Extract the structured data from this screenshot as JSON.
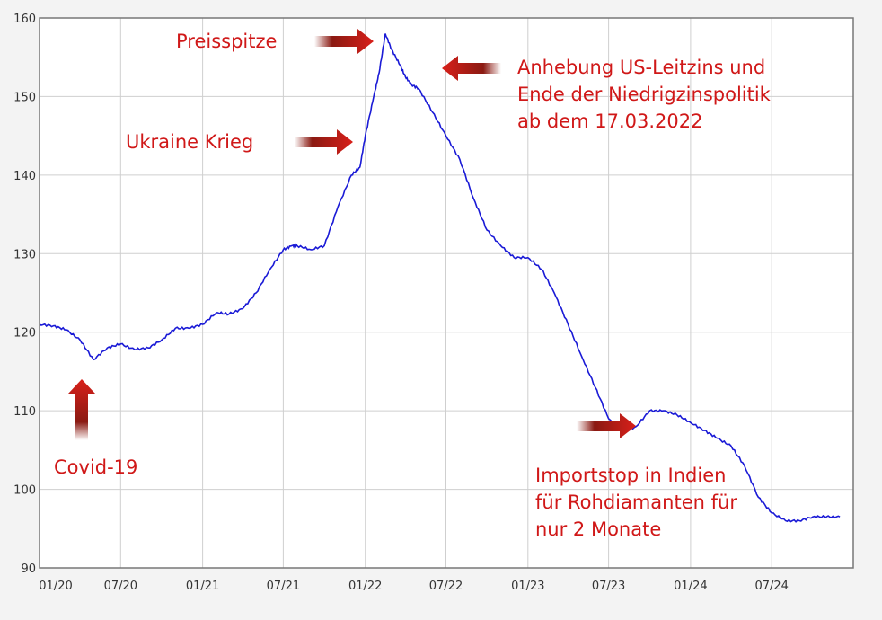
{
  "chart_data": {
    "type": "line",
    "title": "",
    "xlabel": "",
    "ylabel": "",
    "ylim": [
      90,
      160
    ],
    "y_ticks": [
      "90",
      "100",
      "110",
      "120",
      "130",
      "140",
      "150",
      "160"
    ],
    "x_ticks": [
      "01/20",
      "07/20",
      "01/21",
      "07/21",
      "01/22",
      "07/22",
      "01/23",
      "07/23",
      "01/24",
      "07/24"
    ],
    "grid": true,
    "line_color": "#1a1ad6",
    "annotation_color": "#d01818",
    "series": [
      {
        "x": [
          "2020-01-01",
          "2020-02-01",
          "2020-03-01",
          "2020-04-01",
          "2020-05-01",
          "2020-06-01",
          "2020-07-01",
          "2020-08-01",
          "2020-09-01",
          "2020-10-01",
          "2020-11-01",
          "2020-12-01",
          "2021-01-01",
          "2021-02-01",
          "2021-03-01",
          "2021-04-01",
          "2021-05-01",
          "2021-06-01",
          "2021-07-01",
          "2021-07-20",
          "2021-08-01",
          "2021-09-01",
          "2021-10-01",
          "2021-11-01",
          "2021-12-01",
          "2021-12-20",
          "2022-01-01",
          "2022-01-20",
          "2022-02-01",
          "2022-02-15",
          "2022-03-01",
          "2022-03-20",
          "2022-04-01",
          "2022-04-15",
          "2022-05-01",
          "2022-06-01",
          "2022-07-01",
          "2022-08-01",
          "2022-09-01",
          "2022-10-01",
          "2022-11-01",
          "2022-12-01",
          "2023-01-01",
          "2023-02-01",
          "2023-03-01",
          "2023-04-01",
          "2023-05-01",
          "2023-06-01",
          "2023-07-01",
          "2023-08-01",
          "2023-09-01",
          "2023-10-01",
          "2023-11-01",
          "2023-12-01",
          "2024-01-01",
          "2024-02-01",
          "2024-03-01",
          "2024-04-01",
          "2024-05-01",
          "2024-06-01",
          "2024-07-01",
          "2024-08-01",
          "2024-09-01",
          "2024-10-01",
          "2024-11-01",
          "2024-12-01"
        ],
        "y": [
          121,
          120.8,
          120.3,
          119,
          116.5,
          118,
          118.5,
          117.8,
          118,
          119,
          120.5,
          120.5,
          121,
          122.5,
          122.3,
          123,
          125,
          128,
          130.5,
          131,
          131,
          130.5,
          131,
          136,
          140,
          141,
          145,
          150,
          153,
          158,
          156,
          154,
          152.5,
          151.5,
          151,
          148,
          145,
          142,
          137,
          133,
          131,
          129.5,
          129.5,
          128,
          125,
          121,
          117,
          113,
          109,
          107.2,
          108,
          110,
          110,
          109.5,
          108.5,
          107.5,
          106.5,
          105.5,
          103,
          99,
          97,
          96,
          96,
          96.5,
          96.5,
          96.5
        ]
      }
    ],
    "annotations": [
      {
        "id": "covid",
        "text": [
          "Covid-19"
        ]
      },
      {
        "id": "ukraine",
        "text": [
          "Ukraine Krieg"
        ]
      },
      {
        "id": "spike",
        "text": [
          "Preisspitze"
        ]
      },
      {
        "id": "rate",
        "text": [
          "Anhebung US-Leitzins und",
          "Ende der Niedrigzinspolitik",
          "ab dem 17.03.2022"
        ]
      },
      {
        "id": "import",
        "text": [
          "Importstop in Indien",
          "für Rohdiamanten für",
          "nur 2 Monate"
        ]
      }
    ]
  }
}
